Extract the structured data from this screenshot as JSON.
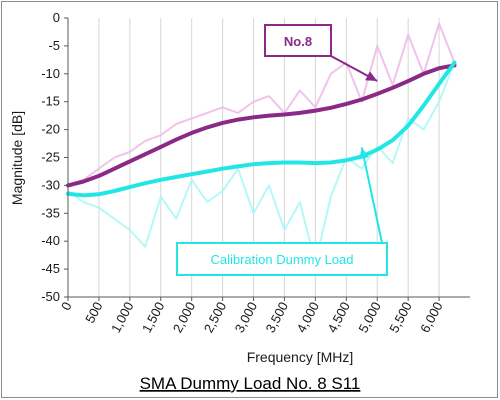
{
  "chart_data": {
    "type": "line",
    "title": "SMA Dummy Load No. 8 S11",
    "xlabel": "Frequency [MHz]",
    "ylabel": "Magnitude [dB]",
    "xlim": [
      0,
      6500
    ],
    "ylim": [
      -50,
      0
    ],
    "xticks": [
      0,
      500,
      1000,
      1500,
      2000,
      2500,
      3000,
      3500,
      4000,
      4500,
      5000,
      5500,
      6000
    ],
    "xtick_labels": [
      "0",
      "500",
      "1,000",
      "1,500",
      "2,000",
      "2,500",
      "3,000",
      "3,500",
      "4,000",
      "4,500",
      "5,000",
      "5,500",
      "6,000"
    ],
    "yticks": [
      0,
      -5,
      -10,
      -15,
      -20,
      -25,
      -30,
      -35,
      -40,
      -45,
      -50
    ],
    "ytick_labels": [
      "0",
      "-5",
      "-10",
      "-15",
      "-20",
      "-25",
      "-30",
      "-35",
      "-40",
      "-45",
      "-50"
    ],
    "grid": "vertical",
    "series": [
      {
        "name": "No.8",
        "role": "raw",
        "color": "#f0b8e6",
        "x": [
          0,
          250,
          500,
          750,
          1000,
          1250,
          1500,
          1750,
          2000,
          2250,
          2500,
          2750,
          3000,
          3250,
          3500,
          3750,
          4000,
          4250,
          4500,
          4750,
          5000,
          5250,
          5500,
          5750,
          6000,
          6250
        ],
        "values": [
          -30,
          -29,
          -27,
          -25,
          -24,
          -22,
          -21,
          -19,
          -18,
          -17,
          -16,
          -17,
          -15,
          -14,
          -17,
          -13,
          -16,
          -10,
          -8,
          -15,
          -5,
          -12,
          -3,
          -10,
          -1,
          -8
        ]
      },
      {
        "name": "No.8",
        "role": "trend",
        "color": "#8a2a86",
        "x": [
          0,
          250,
          500,
          750,
          1000,
          1250,
          1500,
          1750,
          2000,
          2250,
          2500,
          2750,
          3000,
          3250,
          3500,
          3750,
          4000,
          4250,
          4500,
          4750,
          5000,
          5250,
          5500,
          5750,
          6000,
          6250
        ],
        "values": [
          -30,
          -29.3,
          -28.3,
          -27,
          -25.7,
          -24.4,
          -23.1,
          -21.8,
          -20.6,
          -19.6,
          -18.8,
          -18.2,
          -17.8,
          -17.5,
          -17.3,
          -17.0,
          -16.6,
          -16.1,
          -15.4,
          -14.6,
          -13.6,
          -12.5,
          -11.3,
          -10.0,
          -9.0,
          -8.5
        ]
      },
      {
        "name": "Calibration Dummy Load",
        "role": "raw",
        "color": "#a8f7f7",
        "x": [
          0,
          250,
          500,
          750,
          1000,
          1250,
          1500,
          1750,
          2000,
          2250,
          2500,
          2750,
          3000,
          3250,
          3500,
          3750,
          4000,
          4250,
          4500,
          4750,
          5000,
          5250,
          5500,
          5750,
          6000,
          6250
        ],
        "values": [
          -31,
          -33,
          -34,
          -36,
          -38,
          -41,
          -32,
          -36,
          -29,
          -33,
          -31,
          -27,
          -35,
          -30,
          -38,
          -33,
          -44,
          -32,
          -25,
          -27,
          -23,
          -26,
          -18,
          -20,
          -15,
          -8
        ]
      },
      {
        "name": "Calibration Dummy Load",
        "role": "trend",
        "color": "#22e6e6",
        "x": [
          0,
          250,
          500,
          750,
          1000,
          1250,
          1500,
          1750,
          2000,
          2250,
          2500,
          2750,
          3000,
          3250,
          3500,
          3750,
          4000,
          4250,
          4500,
          4750,
          5000,
          5250,
          5500,
          5750,
          6000,
          6250
        ],
        "values": [
          -31.5,
          -31.8,
          -31.6,
          -31.0,
          -30.3,
          -29.6,
          -29.0,
          -28.5,
          -28.0,
          -27.5,
          -27.0,
          -26.6,
          -26.2,
          -26.0,
          -25.9,
          -25.9,
          -26.0,
          -25.9,
          -25.5,
          -24.8,
          -23.6,
          -21.9,
          -19.3,
          -15.7,
          -11.8,
          -8.0
        ]
      }
    ],
    "annotations": [
      {
        "text": "No.8",
        "color": "#8a2a86",
        "border": "#8a2a86",
        "target": [
          5000,
          -11.3
        ]
      },
      {
        "text": "Calibration Dummy Load",
        "color": "#22e6e6",
        "border": "#22e6e6",
        "target": [
          4750,
          -23.2
        ]
      }
    ]
  }
}
